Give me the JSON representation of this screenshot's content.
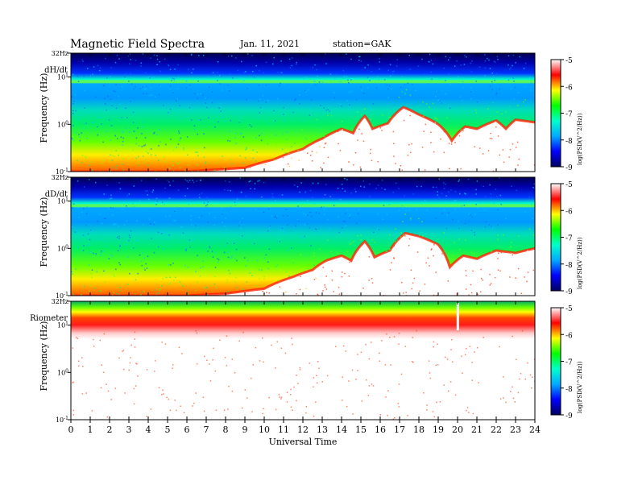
{
  "chart_data": {
    "type": "heatmap",
    "title": "Magnetic Field Spectra",
    "date": "Jan. 11, 2021",
    "station": "station=GAK",
    "xlabel": "Universal Time",
    "x_ticks": [
      "0",
      "1",
      "2",
      "3",
      "4",
      "5",
      "6",
      "7",
      "8",
      "9",
      "10",
      "11",
      "12",
      "13",
      "14",
      "15",
      "16",
      "17",
      "18",
      "19",
      "20",
      "21",
      "22",
      "23",
      "24"
    ],
    "xlim": [
      0,
      24
    ],
    "y_scale": "log",
    "colorbar": {
      "label": "log(PSD(V^2/Hz))",
      "ticks": [
        "-5",
        "-6",
        "-7",
        "-8",
        "-9"
      ],
      "range": [
        -9,
        -5
      ],
      "colors": [
        "#000060",
        "#0000ff",
        "#00aaff",
        "#00ffcc",
        "#00ff00",
        "#ffff00",
        "#ff0000",
        "#ffffff"
      ]
    },
    "panels": [
      {
        "name": "dH/dt",
        "ylabel": "Frequency (Hz)",
        "y_ticks": [
          "32Hz",
          "10^1",
          "10^0",
          "10^-1"
        ],
        "ridge_hz": [
          [
            0,
            0.1
          ],
          [
            6,
            0.1
          ],
          [
            9,
            0.12
          ],
          [
            10.5,
            0.18
          ],
          [
            12,
            0.3
          ],
          [
            13,
            0.5
          ],
          [
            14,
            0.8
          ],
          [
            14.6,
            0.65
          ],
          [
            15.2,
            1.5
          ],
          [
            15.6,
            0.8
          ],
          [
            16.4,
            1.05
          ],
          [
            17.2,
            2.3
          ],
          [
            18,
            1.6
          ],
          [
            19,
            1.0
          ],
          [
            19.7,
            0.45
          ],
          [
            20.4,
            0.9
          ],
          [
            21,
            0.8
          ],
          [
            22,
            1.2
          ],
          [
            22.5,
            0.8
          ],
          [
            23,
            1.25
          ],
          [
            24,
            1.1
          ]
        ]
      },
      {
        "name": "dD/dt",
        "ylabel": "Frequency (Hz)",
        "y_ticks": [
          "32Hz",
          "10^1",
          "10^0",
          "10^-1"
        ],
        "ridge_hz": [
          [
            0,
            0.1
          ],
          [
            6,
            0.1
          ],
          [
            8,
            0.11
          ],
          [
            10,
            0.14
          ],
          [
            11.5,
            0.25
          ],
          [
            12.5,
            0.35
          ],
          [
            13.2,
            0.55
          ],
          [
            14,
            0.7
          ],
          [
            14.5,
            0.55
          ],
          [
            15.2,
            1.4
          ],
          [
            15.7,
            0.65
          ],
          [
            16.5,
            0.9
          ],
          [
            17.3,
            2.1
          ],
          [
            18,
            1.8
          ],
          [
            19,
            1.2
          ],
          [
            19.6,
            0.4
          ],
          [
            20.3,
            0.7
          ],
          [
            21,
            0.6
          ],
          [
            22,
            0.9
          ],
          [
            23,
            0.8
          ],
          [
            24,
            1.0
          ]
        ]
      },
      {
        "name": "Riometer",
        "ylabel": "Frequency (Hz)",
        "y_ticks": [
          "32Hz",
          "10^1",
          "10^0",
          "10^-1"
        ],
        "ridge_hz": [
          [
            0,
            12
          ],
          [
            24,
            12
          ]
        ]
      }
    ]
  }
}
